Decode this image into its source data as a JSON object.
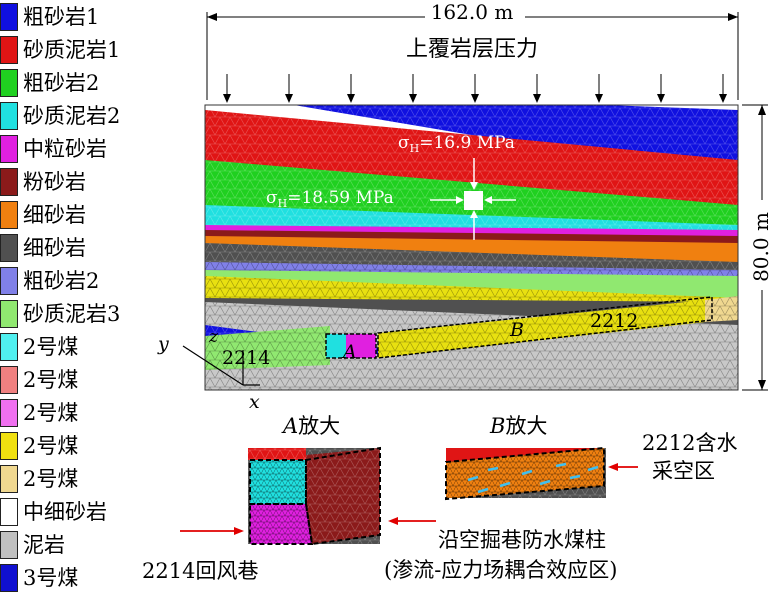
{
  "legend": [
    {
      "label": "粗砂岩1",
      "color": "#1010e0"
    },
    {
      "label": "砂质泥岩1",
      "color": "#e01515"
    },
    {
      "label": "粗砂岩2",
      "color": "#20d020"
    },
    {
      "label": "砂质泥岩2",
      "color": "#20e0e0"
    },
    {
      "label": "中粒砂岩",
      "color": "#e020e0"
    },
    {
      "label": "粉砂岩",
      "color": "#8b1a1a"
    },
    {
      "label": "细砂岩",
      "color": "#f08010"
    },
    {
      "label": "细砂岩",
      "color": "#505050"
    },
    {
      "label": "粗砂岩2",
      "color": "#8080e8"
    },
    {
      "label": "砂质泥岩3",
      "color": "#90e870"
    },
    {
      "label": "2号煤",
      "color": "#50f0f0"
    },
    {
      "label": "2号煤",
      "color": "#f08080"
    },
    {
      "label": "2号煤",
      "color": "#f070f0"
    },
    {
      "label": "2号煤",
      "color": "#f0e010"
    },
    {
      "label": "2号煤",
      "color": "#f0d890"
    },
    {
      "label": "中细砂岩",
      "color": "#ffffff"
    },
    {
      "label": "泥岩",
      "color": "#c0c0c0"
    },
    {
      "label": "3号煤",
      "color": "#1010d0"
    }
  ],
  "model": {
    "width_label": "162.0 m",
    "height_label": "80.0 m",
    "overburden_label": "上覆岩层压力",
    "sigma_v": {
      "symbol": "σ",
      "sub": "H",
      "value": "=16.9 MPa"
    },
    "sigma_h": {
      "symbol": "σ",
      "sub": "H",
      "value": "=18.59 MPa"
    },
    "label_2214": "2214",
    "label_2212": "2212",
    "label_A": "A",
    "label_B": "B",
    "axis_y": "y",
    "axis_z": "z",
    "axis_x": "x"
  },
  "zoom_a": {
    "letter": "A",
    "text": "放大"
  },
  "zoom_b": {
    "letter": "B",
    "text": "放大"
  },
  "annotations": {
    "goaf_line1": "2212含水",
    "goaf_line2": "采空区",
    "pillar_line1": "沿空掘巷防水煤柱",
    "pillar_line2": "(渗流-应力场耦合效应区)",
    "airway": "2214回风巷"
  },
  "colors": {
    "blue": "#1010e0",
    "red": "#e01515",
    "green": "#20d020",
    "cyan": "#20e0e0",
    "magenta": "#e020e0",
    "maroon": "#8b1a1a",
    "orange": "#f08010",
    "dark_gray": "#505050",
    "periwinkle": "#8080e8",
    "light_green": "#90e870",
    "yellow": "#e8e010",
    "tan": "#f0d890",
    "light_gray": "#c8c8c8",
    "arrow_red": "#e00000"
  }
}
